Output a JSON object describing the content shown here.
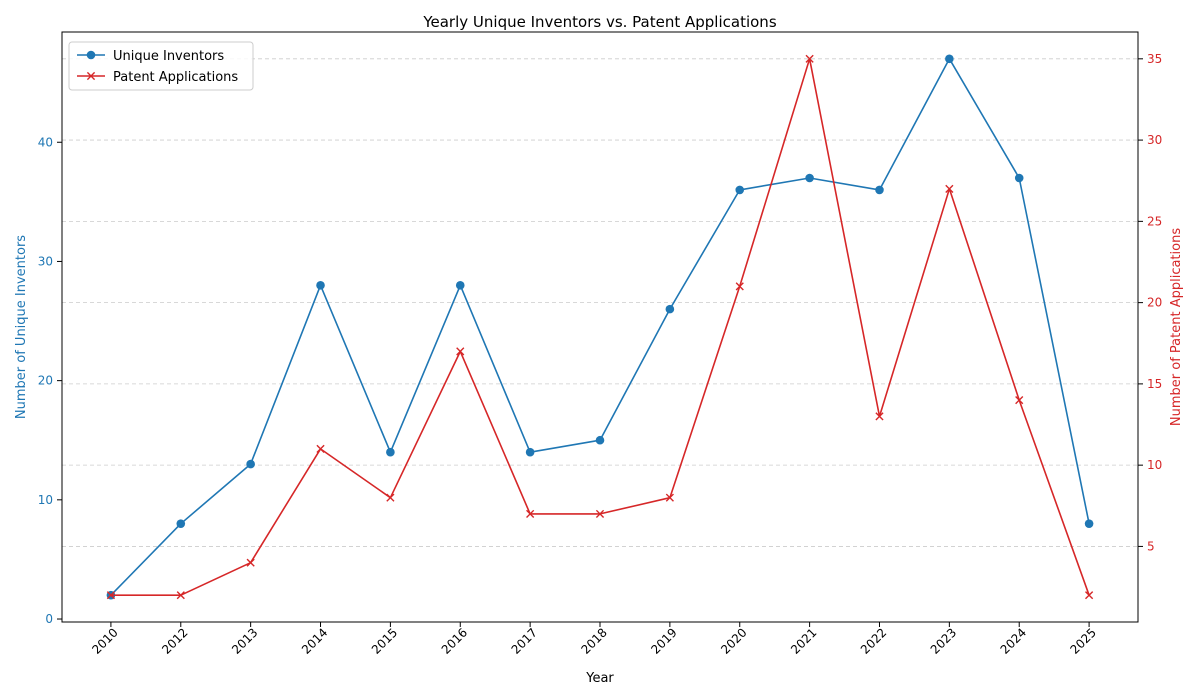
{
  "chart_data": {
    "type": "line",
    "title": "Yearly Unique Inventors vs. Patent Applications",
    "xlabel": "Year",
    "ylabel_left": "Number of Unique Inventors",
    "ylabel_right": "Number of Patent Applications",
    "categories": [
      "2010",
      "2012",
      "2013",
      "2014",
      "2015",
      "2016",
      "2017",
      "2018",
      "2019",
      "2020",
      "2021",
      "2022",
      "2023",
      "2024",
      "2025"
    ],
    "ylim_left": [
      -0.25,
      49.25
    ],
    "yticks_left": [
      0,
      10,
      20,
      30,
      40
    ],
    "ylim_right": [
      0.35,
      36.65
    ],
    "yticks_right": [
      5,
      10,
      15,
      20,
      25,
      30,
      35
    ],
    "grid": "horizontal-dashed-right-axis",
    "legend_position": "top-left",
    "series": [
      {
        "name": "Unique Inventors",
        "axis": "left",
        "color": "#1f77b4",
        "marker": "circle",
        "values": [
          2,
          8,
          13,
          28,
          14,
          28,
          14,
          15,
          26,
          36,
          37,
          36,
          47,
          37,
          8
        ]
      },
      {
        "name": "Patent Applications",
        "axis": "right",
        "color": "#d62728",
        "marker": "x",
        "values": [
          2,
          2,
          4,
          11,
          8,
          17,
          7,
          7,
          8,
          21,
          35,
          13,
          27,
          14,
          2
        ]
      }
    ]
  }
}
